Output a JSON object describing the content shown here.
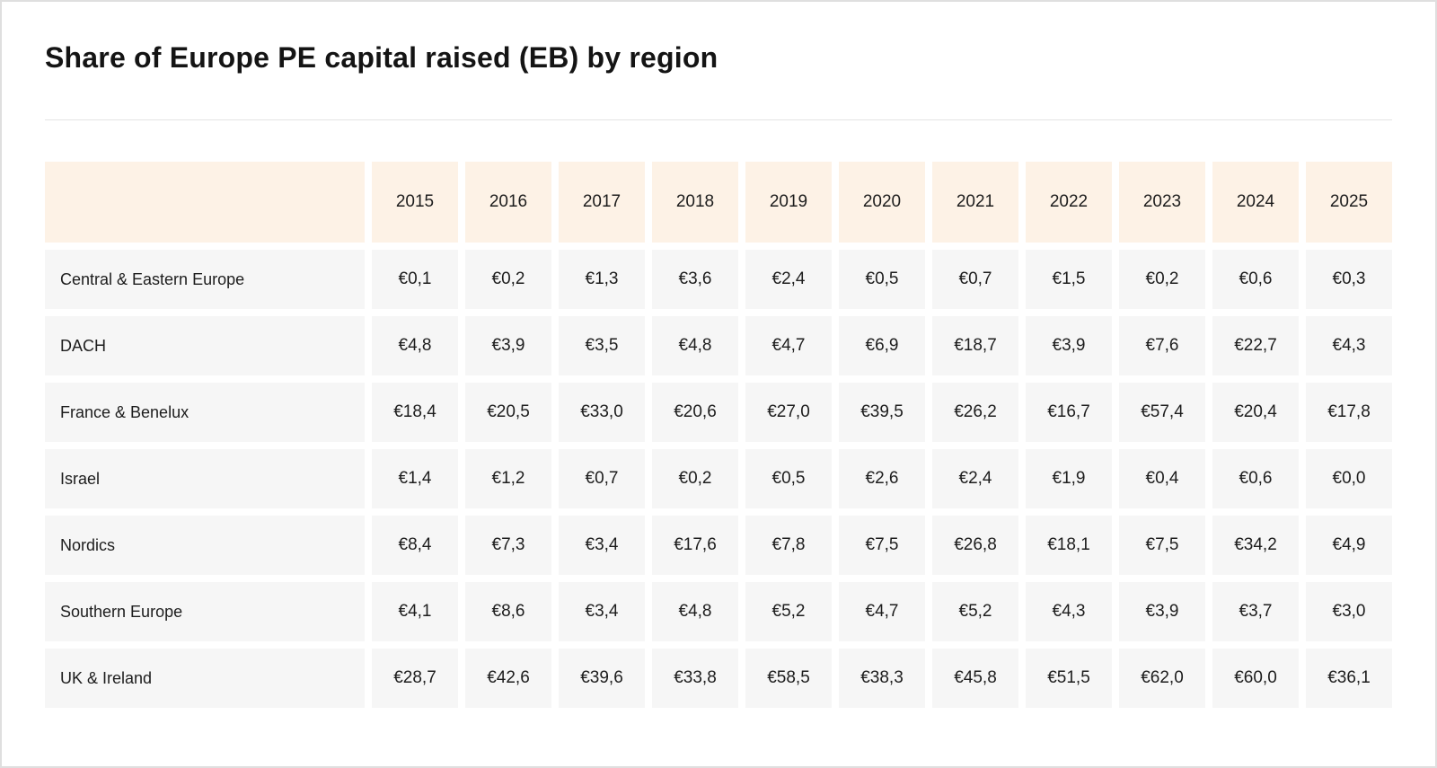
{
  "page": {
    "title": "Share of Europe PE capital raised (EB) by region"
  },
  "table": {
    "corner_label": "",
    "years": [
      "2015",
      "2016",
      "2017",
      "2018",
      "2019",
      "2020",
      "2021",
      "2022",
      "2023",
      "2024",
      "2025"
    ],
    "rows": [
      {
        "region": "Central & Eastern Europe",
        "values": [
          "€0,1",
          "€0,2",
          "€1,3",
          "€3,6",
          "€2,4",
          "€0,5",
          "€0,7",
          "€1,5",
          "€0,2",
          "€0,6",
          "€0,3"
        ]
      },
      {
        "region": "DACH",
        "values": [
          "€4,8",
          "€3,9",
          "€3,5",
          "€4,8",
          "€4,7",
          "€6,9",
          "€18,7",
          "€3,9",
          "€7,6",
          "€22,7",
          "€4,3"
        ]
      },
      {
        "region": "France & Benelux",
        "values": [
          "€18,4",
          "€20,5",
          "€33,0",
          "€20,6",
          "€27,0",
          "€39,5",
          "€26,2",
          "€16,7",
          "€57,4",
          "€20,4",
          "€17,8"
        ]
      },
      {
        "region": "Israel",
        "values": [
          "€1,4",
          "€1,2",
          "€0,7",
          "€0,2",
          "€0,5",
          "€2,6",
          "€2,4",
          "€1,9",
          "€0,4",
          "€0,6",
          "€0,0"
        ]
      },
      {
        "region": "Nordics",
        "values": [
          "€8,4",
          "€7,3",
          "€3,4",
          "€17,6",
          "€7,8",
          "€7,5",
          "€26,8",
          "€18,1",
          "€7,5",
          "€34,2",
          "€4,9"
        ]
      },
      {
        "region": "Southern Europe",
        "values": [
          "€4,1",
          "€8,6",
          "€3,4",
          "€4,8",
          "€5,2",
          "€4,7",
          "€5,2",
          "€4,3",
          "€3,9",
          "€3,7",
          "€3,0"
        ]
      },
      {
        "region": "UK & Ireland",
        "values": [
          "€28,7",
          "€42,6",
          "€39,6",
          "€33,8",
          "€58,5",
          "€38,3",
          "€45,8",
          "€51,5",
          "€62,0",
          "€60,0",
          "€36,1"
        ]
      }
    ]
  },
  "colors": {
    "header_bg": "#fdf2e6",
    "row_bg": "#f6f6f6",
    "text": "#1d1d1d",
    "divider": "#e4e4e4",
    "page_border": "#dfdfdf"
  },
  "chart_data": {
    "type": "table",
    "title": "Share of Europe PE capital raised (EB) by region",
    "unit": "EUR billions",
    "categories": [
      2015,
      2016,
      2017,
      2018,
      2019,
      2020,
      2021,
      2022,
      2023,
      2024,
      2025
    ],
    "series": [
      {
        "name": "Central & Eastern Europe",
        "values": [
          0.1,
          0.2,
          1.3,
          3.6,
          2.4,
          0.5,
          0.7,
          1.5,
          0.2,
          0.6,
          0.3
        ]
      },
      {
        "name": "DACH",
        "values": [
          4.8,
          3.9,
          3.5,
          4.8,
          4.7,
          6.9,
          18.7,
          3.9,
          7.6,
          22.7,
          4.3
        ]
      },
      {
        "name": "France & Benelux",
        "values": [
          18.4,
          20.5,
          33.0,
          20.6,
          27.0,
          39.5,
          26.2,
          16.7,
          57.4,
          20.4,
          17.8
        ]
      },
      {
        "name": "Israel",
        "values": [
          1.4,
          1.2,
          0.7,
          0.2,
          0.5,
          2.6,
          2.4,
          1.9,
          0.4,
          0.6,
          0.0
        ]
      },
      {
        "name": "Nordics",
        "values": [
          8.4,
          7.3,
          3.4,
          17.6,
          7.8,
          7.5,
          26.8,
          18.1,
          7.5,
          34.2,
          4.9
        ]
      },
      {
        "name": "Southern Europe",
        "values": [
          4.1,
          8.6,
          3.4,
          4.8,
          5.2,
          4.7,
          5.2,
          4.3,
          3.9,
          3.7,
          3.0
        ]
      },
      {
        "name": "UK & Ireland",
        "values": [
          28.7,
          42.6,
          39.6,
          33.8,
          58.5,
          38.3,
          45.8,
          51.5,
          62.0,
          60.0,
          36.1
        ]
      }
    ]
  }
}
